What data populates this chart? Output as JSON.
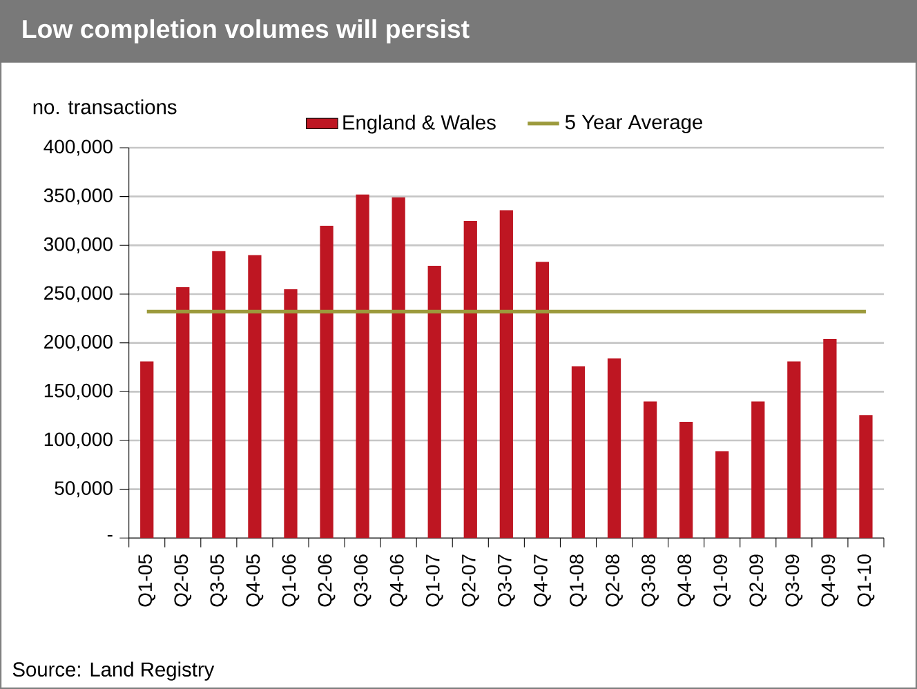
{
  "chart_data": {
    "type": "bar",
    "title": "Low completion volumes will persist",
    "ylabel": "no. transactions",
    "categories": [
      "Q1-05",
      "Q2-05",
      "Q3-05",
      "Q4-05",
      "Q1-06",
      "Q2-06",
      "Q3-06",
      "Q4-06",
      "Q1-07",
      "Q2-07",
      "Q3-07",
      "Q4-07",
      "Q1-08",
      "Q2-08",
      "Q3-08",
      "Q4-08",
      "Q1-09",
      "Q2-09",
      "Q3-09",
      "Q4-09",
      "Q1-10"
    ],
    "series": [
      {
        "name": "England & Wales",
        "color": "#be1622",
        "values": [
          181000,
          257000,
          294000,
          290000,
          255000,
          320000,
          352000,
          349000,
          279000,
          325000,
          336000,
          283000,
          176000,
          184000,
          140000,
          119000,
          89000,
          140000,
          181000,
          204000,
          126000
        ]
      },
      {
        "name": "5 Year Average",
        "type": "line",
        "color": "#9c9a3c",
        "values": [
          232000,
          232000,
          232000,
          232000,
          232000,
          232000,
          232000,
          232000,
          232000,
          232000,
          232000,
          232000,
          232000,
          232000,
          232000,
          232000,
          232000,
          232000,
          232000,
          232000,
          232000
        ]
      }
    ],
    "ylim": [
      0,
      400000
    ],
    "yticks": [
      {
        "value": 0,
        "label": "-"
      },
      {
        "value": 50000,
        "label": "50,000"
      },
      {
        "value": 100000,
        "label": "100,000"
      },
      {
        "value": 150000,
        "label": "150,000"
      },
      {
        "value": 200000,
        "label": "200,000"
      },
      {
        "value": 250000,
        "label": "250,000"
      },
      {
        "value": 300000,
        "label": "300,000"
      },
      {
        "value": 350000,
        "label": "350,000"
      },
      {
        "value": 400000,
        "label": "400,000"
      }
    ],
    "grid": "y",
    "legend": "top",
    "annotations": [
      "Source: Land Registry"
    ]
  }
}
